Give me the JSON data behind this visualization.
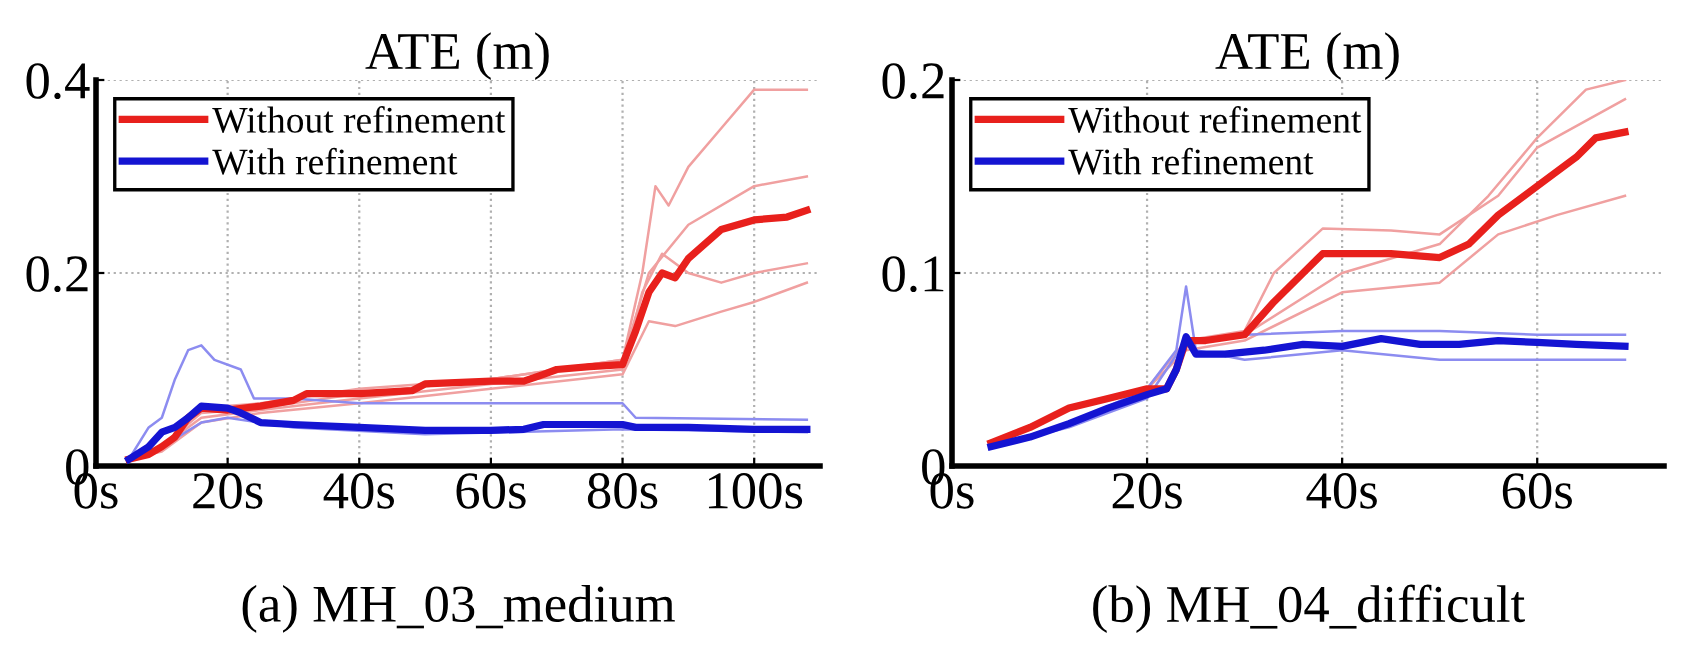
{
  "chart_data": [
    {
      "type": "line",
      "title": "ATE (m)",
      "annotations": [
        "(a) MH_03_medium"
      ],
      "xlim": [
        0,
        110
      ],
      "xticks": [
        {
          "value": 0,
          "label": "0s"
        },
        {
          "value": 20,
          "label": "20s"
        },
        {
          "value": 40,
          "label": "40s"
        },
        {
          "value": 60,
          "label": "60s"
        },
        {
          "value": 80,
          "label": "80s"
        },
        {
          "value": 100,
          "label": "100s"
        }
      ],
      "ylim": [
        0,
        0.4
      ],
      "yticks": [
        0,
        0.2,
        0.4
      ],
      "grid": true,
      "legend": "top left",
      "line_style": "solid",
      "marker": "none",
      "series": [
        {
          "color": "#f0a0a0",
          "x": [
            5,
            10,
            16,
            25,
            40,
            60,
            80,
            83,
            85,
            87,
            90,
            95,
            100,
            108
          ],
          "values": [
            0.007,
            0.02,
            0.06,
            0.065,
            0.08,
            0.09,
            0.11,
            0.2,
            0.29,
            0.27,
            0.31,
            0.35,
            0.39,
            0.39
          ]
        },
        {
          "color": "#f0a0a0",
          "x": [
            5,
            10,
            16,
            25,
            40,
            60,
            80,
            84,
            90,
            100,
            108
          ],
          "values": [
            0.007,
            0.02,
            0.055,
            0.06,
            0.075,
            0.09,
            0.11,
            0.2,
            0.25,
            0.29,
            0.3
          ]
        },
        {
          "color": "#f0a0a0",
          "x": [
            5,
            10,
            16,
            25,
            40,
            60,
            80,
            83,
            86,
            90,
            95,
            100,
            108
          ],
          "values": [
            0.007,
            0.02,
            0.05,
            0.058,
            0.07,
            0.085,
            0.1,
            0.18,
            0.22,
            0.2,
            0.19,
            0.2,
            0.21
          ]
        },
        {
          "color": "#f0a0a0",
          "x": [
            5,
            10,
            16,
            25,
            40,
            60,
            80,
            84,
            88,
            95,
            100,
            108
          ],
          "values": [
            0.007,
            0.015,
            0.045,
            0.055,
            0.065,
            0.08,
            0.095,
            0.15,
            0.145,
            0.16,
            0.17,
            0.19
          ]
        },
        {
          "color": "#8c8cf0",
          "x": [
            5,
            8,
            10,
            12,
            14,
            16,
            18,
            22,
            24,
            30,
            40,
            60,
            80,
            82,
            108
          ],
          "values": [
            0.007,
            0.04,
            0.05,
            0.09,
            0.12,
            0.125,
            0.11,
            0.1,
            0.07,
            0.07,
            0.065,
            0.065,
            0.065,
            0.05,
            0.048
          ]
        },
        {
          "color": "#8c8cf0",
          "x": [
            5,
            10,
            16,
            20,
            30,
            50,
            80,
            108
          ],
          "values": [
            0.005,
            0.02,
            0.045,
            0.05,
            0.04,
            0.033,
            0.038,
            0.035
          ]
        },
        {
          "name": "Without refinement",
          "color": "#e8201c",
          "x": [
            5,
            8,
            10,
            12,
            14,
            16,
            20,
            25,
            30,
            32,
            40,
            48,
            50,
            60,
            65,
            68,
            70,
            75,
            80,
            82,
            84,
            86,
            88,
            90,
            95,
            100,
            105,
            108
          ],
          "values": [
            0.007,
            0.012,
            0.02,
            0.03,
            0.05,
            0.06,
            0.058,
            0.062,
            0.068,
            0.075,
            0.075,
            0.078,
            0.085,
            0.088,
            0.088,
            0.095,
            0.1,
            0.103,
            0.105,
            0.14,
            0.18,
            0.2,
            0.195,
            0.215,
            0.245,
            0.255,
            0.258,
            0.265
          ]
        },
        {
          "name": "With refinement",
          "color": "#1414d2",
          "x": [
            5,
            8,
            10,
            12,
            14,
            16,
            20,
            22,
            25,
            30,
            40,
            50,
            60,
            65,
            68,
            75,
            80,
            82,
            90,
            100,
            108
          ],
          "values": [
            0.007,
            0.02,
            0.035,
            0.04,
            0.05,
            0.062,
            0.06,
            0.055,
            0.045,
            0.043,
            0.04,
            0.037,
            0.037,
            0.038,
            0.043,
            0.043,
            0.043,
            0.04,
            0.04,
            0.038,
            0.038
          ]
        }
      ]
    },
    {
      "type": "line",
      "title": "ATE (m)",
      "annotations": [
        "(b) MH_04_difficult"
      ],
      "xlim": [
        0,
        73
      ],
      "xticks": [
        {
          "value": 0,
          "label": "0s"
        },
        {
          "value": 20,
          "label": "20s"
        },
        {
          "value": 40,
          "label": "40s"
        },
        {
          "value": 60,
          "label": "60s"
        }
      ],
      "ylim": [
        0,
        0.2
      ],
      "yticks": [
        0,
        0.1,
        0.2
      ],
      "grid": true,
      "legend": "top left",
      "line_style": "solid",
      "marker": "none",
      "series": [
        {
          "color": "#f0a0a0",
          "x": [
            4,
            12,
            20,
            24,
            30,
            40,
            50,
            55,
            60,
            65,
            69
          ],
          "values": [
            0.012,
            0.03,
            0.04,
            0.065,
            0.068,
            0.1,
            0.115,
            0.14,
            0.17,
            0.195,
            0.2
          ]
        },
        {
          "color": "#f0a0a0",
          "x": [
            4,
            12,
            20,
            24,
            30,
            40,
            50,
            56,
            62,
            69
          ],
          "values": [
            0.012,
            0.03,
            0.04,
            0.06,
            0.065,
            0.09,
            0.095,
            0.12,
            0.13,
            0.14
          ]
        },
        {
          "color": "#f0a0a0",
          "x": [
            4,
            12,
            20,
            24,
            30,
            33,
            38,
            45,
            50,
            56,
            60,
            69
          ],
          "values": [
            0.012,
            0.03,
            0.04,
            0.065,
            0.07,
            0.1,
            0.123,
            0.122,
            0.12,
            0.14,
            0.165,
            0.19
          ]
        },
        {
          "color": "#8c8cf0",
          "x": [
            4,
            12,
            20,
            23,
            24,
            25,
            30,
            40,
            50,
            60,
            69
          ],
          "values": [
            0.01,
            0.022,
            0.04,
            0.06,
            0.093,
            0.06,
            0.055,
            0.06,
            0.055,
            0.055,
            0.055
          ]
        },
        {
          "color": "#8c8cf0",
          "x": [
            4,
            12,
            20,
            24,
            30,
            40,
            50,
            60,
            69
          ],
          "values": [
            0.01,
            0.02,
            0.035,
            0.065,
            0.068,
            0.07,
            0.07,
            0.068,
            0.068
          ]
        },
        {
          "name": "Without refinement",
          "color": "#e8201c",
          "x": [
            4,
            8,
            12,
            16,
            20,
            22,
            23,
            24,
            26,
            30,
            33,
            36,
            38,
            40,
            45,
            50,
            53,
            56,
            60,
            64,
            66,
            69
          ],
          "values": [
            0.012,
            0.02,
            0.03,
            0.035,
            0.04,
            0.04,
            0.05,
            0.065,
            0.065,
            0.068,
            0.085,
            0.1,
            0.11,
            0.11,
            0.11,
            0.108,
            0.115,
            0.13,
            0.145,
            0.16,
            0.17,
            0.173
          ]
        },
        {
          "name": "With refinement",
          "color": "#1414d2",
          "x": [
            4,
            8,
            12,
            16,
            20,
            22,
            23,
            24,
            25,
            28,
            32,
            36,
            40,
            44,
            48,
            52,
            56,
            60,
            64,
            69
          ],
          "values": [
            0.01,
            0.015,
            0.022,
            0.03,
            0.037,
            0.04,
            0.05,
            0.067,
            0.058,
            0.058,
            0.06,
            0.063,
            0.062,
            0.066,
            0.063,
            0.063,
            0.065,
            0.064,
            0.063,
            0.062
          ]
        }
      ]
    }
  ]
}
